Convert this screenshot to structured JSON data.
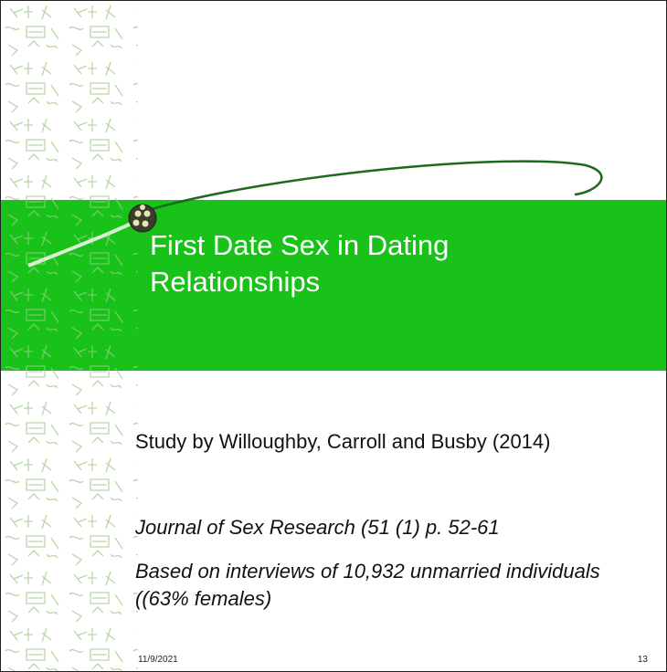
{
  "slide": {
    "title": "First Date Sex in Dating Relationships",
    "body": [
      "Study by Willoughby, Carroll and Busby (2014)",
      "Journal of Sex Research (51 (1) p. 52-61",
      "Based on interviews of 10,932  unmarried individuals ((63% females)"
    ],
    "footer": {
      "date": "11/9/2021",
      "page": "13"
    }
  }
}
